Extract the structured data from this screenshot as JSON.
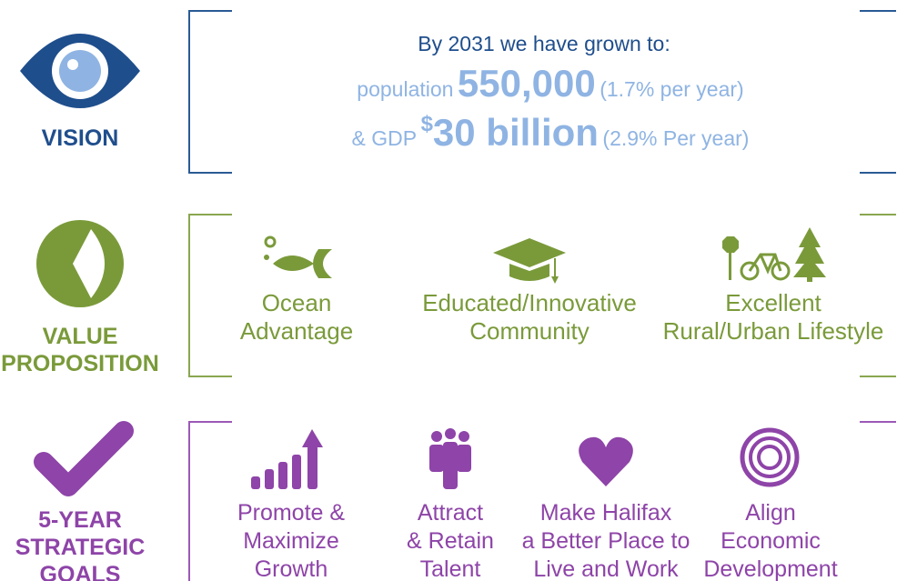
{
  "vision": {
    "label": "VISION",
    "heading": "By 2031 we have grown to:",
    "population": {
      "prefix": "population",
      "value": "550,000",
      "rate": "(1.7% per year)"
    },
    "gdp": {
      "prefix": "& GDP",
      "currency": "$",
      "value": "30 billion",
      "rate": "(2.9% Per year)"
    }
  },
  "value_proposition": {
    "label": [
      "VALUE",
      "PROPOSITION"
    ],
    "items": [
      {
        "lines": [
          "Ocean",
          "Advantage"
        ]
      },
      {
        "lines": [
          "Educated/Innovative",
          "Community"
        ]
      },
      {
        "lines": [
          "Excellent",
          "Rural/Urban Lifestyle"
        ]
      }
    ]
  },
  "goals": {
    "label": [
      "5-YEAR",
      "STRATEGIC",
      "GOALS"
    ],
    "items": [
      {
        "lines": [
          "Promote &",
          "Maximize",
          "Growth"
        ]
      },
      {
        "lines": [
          "Attract",
          "& Retain",
          "Talent"
        ]
      },
      {
        "lines": [
          "Make Halifax",
          "a Better Place to",
          "Live and Work"
        ]
      },
      {
        "lines": [
          "Align",
          "Economic",
          "Development"
        ]
      }
    ]
  }
}
